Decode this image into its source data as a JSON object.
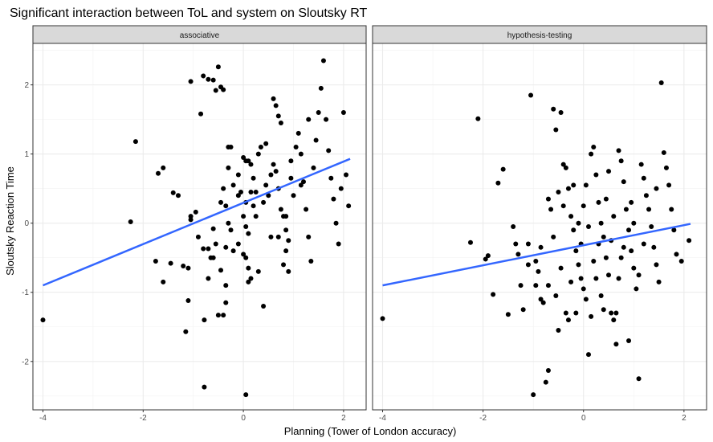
{
  "chart_data": {
    "type": "scatter",
    "title": "Significant interaction between ToL and system on Sloutsky RT",
    "xlabel": "Planning (Tower of London accuracy)",
    "ylabel": "Sloutsky Reaction Time",
    "xlim": [
      -4.2,
      2.45
    ],
    "ylim": [
      -2.7,
      2.6
    ],
    "x_ticks": [
      -4,
      -2,
      0,
      2
    ],
    "y_ticks": [
      -2,
      -1,
      0,
      1,
      2
    ],
    "grid": true,
    "colors": {
      "points": "#000000",
      "fit_line": "#3366ff",
      "strip_bg": "#d9d9d9",
      "panel_border": "#333333",
      "grid": "#ebebeb"
    },
    "panels": [
      {
        "label": "associative",
        "fit": {
          "x": [
            -4,
            2.13
          ],
          "y": [
            -0.9,
            0.93
          ]
        },
        "points": [
          [
            -4.0,
            -1.4
          ],
          [
            -2.15,
            1.18
          ],
          [
            -2.25,
            0.02
          ],
          [
            -1.6,
            0.8
          ],
          [
            -1.7,
            0.72
          ],
          [
            -1.75,
            -0.55
          ],
          [
            -1.6,
            -0.85
          ],
          [
            -1.4,
            0.44
          ],
          [
            -1.3,
            0.4
          ],
          [
            -1.45,
            -0.58
          ],
          [
            -1.2,
            -0.62
          ],
          [
            -1.1,
            -0.65
          ],
          [
            -1.05,
            0.05
          ],
          [
            -1.05,
            0.1
          ],
          [
            -1.1,
            -1.12
          ],
          [
            -1.15,
            -1.57
          ],
          [
            -1.05,
            2.05
          ],
          [
            -0.95,
            0.16
          ],
          [
            -0.9,
            -0.2
          ],
          [
            -0.85,
            1.58
          ],
          [
            -0.8,
            2.13
          ],
          [
            -0.7,
            2.08
          ],
          [
            -0.6,
            2.07
          ],
          [
            -0.55,
            1.92
          ],
          [
            -0.45,
            1.97
          ],
          [
            -0.5,
            2.26
          ],
          [
            -0.4,
            1.93
          ],
          [
            -0.78,
            -2.37
          ],
          [
            -0.8,
            -0.37
          ],
          [
            -0.78,
            -1.4
          ],
          [
            -0.7,
            -0.37
          ],
          [
            -0.65,
            -0.5
          ],
          [
            -0.7,
            -0.8
          ],
          [
            -0.6,
            -0.08
          ],
          [
            -0.6,
            -0.5
          ],
          [
            -0.55,
            -0.3
          ],
          [
            -0.5,
            -1.33
          ],
          [
            -0.4,
            -1.33
          ],
          [
            -0.45,
            -0.68
          ],
          [
            -0.35,
            -0.35
          ],
          [
            -0.35,
            -0.9
          ],
          [
            -0.35,
            -1.15
          ],
          [
            -0.3,
            1.1
          ],
          [
            -0.25,
            1.1
          ],
          [
            -0.3,
            0.8
          ],
          [
            -0.4,
            0.5
          ],
          [
            -0.45,
            0.3
          ],
          [
            -0.35,
            0.25
          ],
          [
            -0.3,
            0.0
          ],
          [
            -0.25,
            -0.1
          ],
          [
            -0.2,
            -0.4
          ],
          [
            -0.1,
            0.7
          ],
          [
            -0.1,
            0.4
          ],
          [
            -0.05,
            0.45
          ],
          [
            0.0,
            0.95
          ],
          [
            0.05,
            0.9
          ],
          [
            0.1,
            0.9
          ],
          [
            0.05,
            0.3
          ],
          [
            0.0,
            0.1
          ],
          [
            0.05,
            -0.05
          ],
          [
            0.1,
            -0.15
          ],
          [
            0.0,
            -0.45
          ],
          [
            0.05,
            -0.5
          ],
          [
            0.1,
            -0.65
          ],
          [
            0.1,
            -0.85
          ],
          [
            0.15,
            -0.8
          ],
          [
            0.05,
            -2.48
          ],
          [
            0.15,
            0.85
          ],
          [
            0.2,
            0.65
          ],
          [
            0.25,
            0.45
          ],
          [
            0.2,
            0.25
          ],
          [
            0.25,
            0.1
          ],
          [
            0.3,
            1.0
          ],
          [
            0.35,
            1.1
          ],
          [
            0.4,
            0.3
          ],
          [
            0.45,
            0.55
          ],
          [
            0.5,
            0.4
          ],
          [
            0.55,
            -0.2
          ],
          [
            0.6,
            1.8
          ],
          [
            0.65,
            1.7
          ],
          [
            0.7,
            1.55
          ],
          [
            0.75,
            1.45
          ],
          [
            0.6,
            0.85
          ],
          [
            0.65,
            0.75
          ],
          [
            0.7,
            0.5
          ],
          [
            0.75,
            0.2
          ],
          [
            0.8,
            0.1
          ],
          [
            0.85,
            -0.1
          ],
          [
            0.9,
            -0.25
          ],
          [
            0.8,
            -0.6
          ],
          [
            0.9,
            -0.7
          ],
          [
            0.85,
            -0.4
          ],
          [
            0.95,
            0.65
          ],
          [
            1.0,
            0.4
          ],
          [
            1.05,
            1.1
          ],
          [
            1.1,
            1.3
          ],
          [
            1.15,
            1.0
          ],
          [
            1.2,
            0.6
          ],
          [
            1.25,
            0.2
          ],
          [
            1.3,
            -0.2
          ],
          [
            1.35,
            -0.55
          ],
          [
            1.4,
            0.8
          ],
          [
            1.45,
            1.2
          ],
          [
            1.5,
            1.6
          ],
          [
            1.55,
            1.95
          ],
          [
            1.6,
            2.35
          ],
          [
            1.65,
            1.5
          ],
          [
            1.7,
            1.05
          ],
          [
            1.75,
            0.65
          ],
          [
            1.8,
            0.35
          ],
          [
            1.85,
            0.0
          ],
          [
            1.9,
            -0.3
          ],
          [
            1.95,
            0.5
          ],
          [
            2.0,
            1.6
          ],
          [
            2.05,
            0.7
          ],
          [
            2.1,
            0.25
          ],
          [
            0.4,
            -1.2
          ],
          [
            0.15,
            0.45
          ],
          [
            -0.1,
            -0.3
          ],
          [
            0.3,
            -0.7
          ],
          [
            0.7,
            -0.2
          ],
          [
            0.55,
            0.7
          ],
          [
            0.95,
            0.9
          ],
          [
            0.45,
            1.15
          ],
          [
            1.15,
            0.55
          ],
          [
            0.85,
            0.1
          ],
          [
            -0.2,
            0.55
          ],
          [
            1.3,
            1.5
          ]
        ]
      },
      {
        "label": "hypothesis-testing",
        "fit": {
          "x": [
            -4,
            2.13
          ],
          "y": [
            -0.9,
            -0.01
          ]
        },
        "points": [
          [
            -4.0,
            -1.38
          ],
          [
            -2.1,
            1.51
          ],
          [
            -2.25,
            -0.28
          ],
          [
            -1.95,
            -0.52
          ],
          [
            -1.9,
            -0.47
          ],
          [
            -1.8,
            -1.03
          ],
          [
            -1.6,
            0.78
          ],
          [
            -1.7,
            0.58
          ],
          [
            -1.5,
            -1.32
          ],
          [
            -1.4,
            -0.05
          ],
          [
            -1.35,
            -0.3
          ],
          [
            -1.3,
            -0.45
          ],
          [
            -1.25,
            -0.9
          ],
          [
            -1.2,
            -1.25
          ],
          [
            -1.1,
            -0.3
          ],
          [
            -1.1,
            -0.6
          ],
          [
            -1.05,
            1.85
          ],
          [
            -1.0,
            -2.48
          ],
          [
            -0.95,
            -0.55
          ],
          [
            -0.9,
            -0.7
          ],
          [
            -0.85,
            -1.1
          ],
          [
            -0.8,
            -1.15
          ],
          [
            -0.75,
            -2.3
          ],
          [
            -0.7,
            -2.13
          ],
          [
            -0.7,
            0.35
          ],
          [
            -0.65,
            0.2
          ],
          [
            -0.6,
            1.65
          ],
          [
            -0.55,
            1.35
          ],
          [
            -0.5,
            0.45
          ],
          [
            -0.45,
            1.6
          ],
          [
            -0.4,
            0.85
          ],
          [
            -0.35,
            0.8
          ],
          [
            -0.3,
            0.5
          ],
          [
            -0.25,
            0.1
          ],
          [
            -0.2,
            -0.1
          ],
          [
            -0.15,
            -0.4
          ],
          [
            -0.1,
            -0.6
          ],
          [
            -0.05,
            -0.8
          ],
          [
            0.0,
            -0.95
          ],
          [
            0.05,
            -1.1
          ],
          [
            0.1,
            -1.9
          ],
          [
            0.15,
            1.0
          ],
          [
            0.2,
            1.1
          ],
          [
            0.25,
            0.7
          ],
          [
            0.3,
            0.3
          ],
          [
            0.35,
            0.0
          ],
          [
            0.4,
            -0.2
          ],
          [
            0.45,
            -0.5
          ],
          [
            0.5,
            -0.75
          ],
          [
            0.55,
            -1.3
          ],
          [
            0.6,
            -1.4
          ],
          [
            0.65,
            -1.75
          ],
          [
            0.7,
            1.05
          ],
          [
            0.75,
            0.9
          ],
          [
            0.8,
            0.6
          ],
          [
            0.85,
            0.2
          ],
          [
            0.9,
            -0.1
          ],
          [
            0.95,
            -0.4
          ],
          [
            1.0,
            -0.65
          ],
          [
            1.05,
            -0.95
          ],
          [
            1.1,
            -2.25
          ],
          [
            1.15,
            0.85
          ],
          [
            1.2,
            0.65
          ],
          [
            1.25,
            0.4
          ],
          [
            1.3,
            0.2
          ],
          [
            1.35,
            -0.05
          ],
          [
            1.4,
            -0.35
          ],
          [
            1.45,
            -0.6
          ],
          [
            1.5,
            -0.85
          ],
          [
            1.55,
            2.03
          ],
          [
            1.6,
            1.02
          ],
          [
            1.65,
            0.8
          ],
          [
            1.7,
            0.55
          ],
          [
            1.75,
            0.2
          ],
          [
            1.8,
            -0.1
          ],
          [
            1.85,
            -0.45
          ],
          [
            1.95,
            -0.55
          ],
          [
            2.1,
            -0.25
          ],
          [
            0.0,
            0.25
          ],
          [
            -0.2,
            0.55
          ],
          [
            0.3,
            -0.3
          ],
          [
            -0.5,
            -1.55
          ],
          [
            -0.3,
            -1.4
          ],
          [
            0.15,
            -1.35
          ],
          [
            -0.1,
            0.0
          ],
          [
            0.45,
            0.35
          ],
          [
            -0.6,
            -0.2
          ],
          [
            0.75,
            -0.5
          ],
          [
            -0.85,
            -0.35
          ],
          [
            0.6,
            0.1
          ],
          [
            0.2,
            -0.55
          ],
          [
            -0.45,
            -0.65
          ],
          [
            1.0,
            0.0
          ],
          [
            -0.15,
            -1.3
          ],
          [
            0.35,
            -1.05
          ],
          [
            0.9,
            -1.7
          ],
          [
            -0.7,
            -0.9
          ],
          [
            0.05,
            0.55
          ],
          [
            0.55,
            -0.25
          ],
          [
            -0.25,
            -0.85
          ],
          [
            0.25,
            -0.8
          ],
          [
            0.5,
            0.75
          ],
          [
            -0.4,
            0.25
          ],
          [
            0.8,
            -0.35
          ],
          [
            1.1,
            -0.75
          ],
          [
            -0.95,
            -0.9
          ],
          [
            0.65,
            -1.3
          ],
          [
            -0.05,
            -0.3
          ],
          [
            0.4,
            -1.25
          ],
          [
            1.2,
            -0.3
          ],
          [
            -0.55,
            -1.05
          ],
          [
            0.95,
            0.3
          ],
          [
            0.1,
            -0.05
          ],
          [
            -0.35,
            -1.3
          ],
          [
            0.7,
            -0.8
          ],
          [
            1.45,
            0.5
          ]
        ]
      }
    ]
  }
}
